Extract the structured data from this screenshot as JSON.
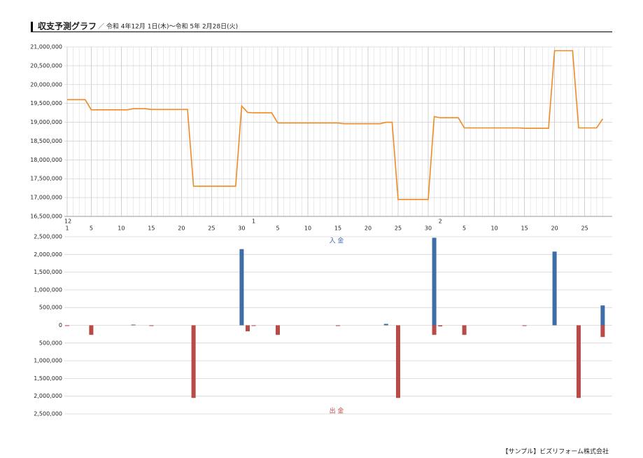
{
  "header": {
    "title": "収支予測グラフ",
    "subtitle": "／ 令和 4年12月 1日(木)～令和 5年 2月28日(火)"
  },
  "footer": "【サンプル】ビズリフォーム株式会社",
  "chart_data": [
    {
      "type": "line",
      "x": [
        "1",
        null,
        null,
        null,
        "5",
        null,
        null,
        null,
        null,
        "10",
        null,
        null,
        null,
        null,
        "15",
        null,
        null,
        null,
        null,
        "20",
        null,
        null,
        null,
        null,
        "25",
        null,
        null,
        null,
        null,
        "30",
        null,
        null,
        null,
        null,
        null,
        "5",
        null,
        null,
        null,
        null,
        "10",
        null,
        null,
        null,
        null,
        "15",
        null,
        null,
        null,
        null,
        "20",
        null,
        null,
        null,
        null,
        "25",
        null,
        null,
        null,
        null,
        "30",
        null,
        null,
        null,
        null,
        null,
        "5",
        null,
        null,
        null,
        null,
        "10",
        null,
        null,
        null,
        null,
        "15",
        null,
        null,
        null,
        null,
        "20",
        null,
        null,
        null,
        null,
        "25",
        null,
        null,
        null
      ],
      "months": [
        "12",
        null,
        null,
        null,
        null,
        null,
        null,
        null,
        null,
        null,
        null,
        null,
        null,
        null,
        null,
        null,
        null,
        null,
        null,
        null,
        null,
        null,
        null,
        null,
        null,
        null,
        null,
        null,
        null,
        null,
        null,
        "1",
        null,
        null,
        null,
        null,
        null,
        null,
        null,
        null,
        null,
        null,
        null,
        null,
        null,
        null,
        null,
        null,
        null,
        null,
        null,
        null,
        null,
        null,
        null,
        null,
        null,
        null,
        null,
        null,
        null,
        null,
        "2",
        null,
        null,
        null,
        null,
        null,
        null,
        null,
        null,
        null,
        null,
        null,
        null,
        null,
        null,
        null,
        null,
        null,
        null,
        null,
        null,
        null,
        null,
        null,
        null,
        null,
        null,
        null
      ],
      "color": "#f08a24",
      "values": [
        19600000,
        19600000,
        19600000,
        19600000,
        19330000,
        19330000,
        19330000,
        19330000,
        19330000,
        19330000,
        19330000,
        19360000,
        19360000,
        19360000,
        19340000,
        19340000,
        19340000,
        19340000,
        19340000,
        19340000,
        19340000,
        17300000,
        17300000,
        17300000,
        17300000,
        17300000,
        17300000,
        17300000,
        17300000,
        19430000,
        19260000,
        19250000,
        19250000,
        19250000,
        19250000,
        18980000,
        18980000,
        18980000,
        18980000,
        18980000,
        18980000,
        18980000,
        18980000,
        18980000,
        18980000,
        18980000,
        18960000,
        18960000,
        18960000,
        18960000,
        18960000,
        18960000,
        18960000,
        19000000,
        19000000,
        16950000,
        16950000,
        16950000,
        16950000,
        16950000,
        16950000,
        19150000,
        19120000,
        19120000,
        19120000,
        19120000,
        18850000,
        18850000,
        18850000,
        18850000,
        18850000,
        18850000,
        18850000,
        18850000,
        18850000,
        18850000,
        18840000,
        18840000,
        18840000,
        18840000,
        18840000,
        20900000,
        20900000,
        20900000,
        20900000,
        18850000,
        18850000,
        18850000,
        18850000,
        19090000
      ],
      "ylim": [
        16500000,
        21000000
      ],
      "yticks": [
        {
          "value": 16500000,
          "label": "16,500,000"
        },
        {
          "value": 17000000,
          "label": "17,000,000"
        },
        {
          "value": 17500000,
          "label": "17,500,000"
        },
        {
          "value": 18000000,
          "label": "18,000,000"
        },
        {
          "value": 18500000,
          "label": "18,500,000"
        },
        {
          "value": 19000000,
          "label": "19,000,000"
        },
        {
          "value": 19500000,
          "label": "19,500,000"
        },
        {
          "value": 20000000,
          "label": "20,000,000"
        },
        {
          "value": 20500000,
          "label": "20,500,000"
        },
        {
          "value": 21000000,
          "label": "21,000,000"
        }
      ],
      "grid": true
    },
    {
      "type": "bar",
      "series": [
        {
          "name": "入 金",
          "color": "#3f6ea6",
          "values": [
            null,
            null,
            null,
            null,
            null,
            null,
            null,
            null,
            null,
            null,
            null,
            20000,
            null,
            null,
            null,
            null,
            null,
            null,
            null,
            null,
            null,
            null,
            null,
            null,
            null,
            null,
            null,
            null,
            null,
            2150000,
            null,
            null,
            null,
            null,
            null,
            null,
            null,
            null,
            null,
            null,
            null,
            null,
            null,
            null,
            null,
            null,
            null,
            null,
            null,
            null,
            null,
            null,
            null,
            40000,
            null,
            null,
            null,
            null,
            null,
            null,
            null,
            2470000,
            null,
            null,
            null,
            null,
            null,
            null,
            null,
            null,
            null,
            null,
            null,
            null,
            null,
            null,
            null,
            null,
            null,
            null,
            null,
            2080000,
            null,
            null,
            null,
            null,
            null,
            null,
            null,
            560000
          ]
        },
        {
          "name": "出 金",
          "color": "#b84a48",
          "values": [
            -20000,
            null,
            null,
            null,
            -270000,
            null,
            null,
            null,
            null,
            null,
            null,
            null,
            null,
            null,
            -20000,
            null,
            null,
            null,
            null,
            null,
            null,
            -2050000,
            null,
            null,
            null,
            null,
            null,
            null,
            null,
            null,
            -170000,
            -20000,
            null,
            null,
            null,
            -270000,
            null,
            null,
            null,
            null,
            null,
            null,
            null,
            null,
            null,
            -20000,
            null,
            null,
            null,
            null,
            null,
            null,
            null,
            null,
            null,
            -2050000,
            null,
            null,
            null,
            null,
            null,
            -270000,
            -30000,
            null,
            null,
            null,
            -270000,
            null,
            null,
            null,
            null,
            null,
            null,
            null,
            null,
            null,
            -20000,
            null,
            null,
            null,
            null,
            null,
            null,
            null,
            null,
            -2050000,
            null,
            null,
            null,
            -330000
          ]
        }
      ],
      "ylim": [
        -2500000,
        2500000
      ],
      "yticks": [
        {
          "value": 2500000,
          "label": "2,500,000"
        },
        {
          "value": 2000000,
          "label": "2,000,000"
        },
        {
          "value": 1500000,
          "label": "1,500,000"
        },
        {
          "value": 1000000,
          "label": "1,000,000"
        },
        {
          "value": 500000,
          "label": "500,000"
        },
        0,
        {
          "value": -500000,
          "label": "500,000"
        },
        {
          "value": -1000000,
          "label": "1,000,000"
        },
        {
          "value": -1500000,
          "label": "1,500,000"
        },
        {
          "value": -2000000,
          "label": "2,000,000"
        },
        {
          "value": -2500000,
          "label": "2,500,000"
        }
      ],
      "grid": true
    }
  ]
}
